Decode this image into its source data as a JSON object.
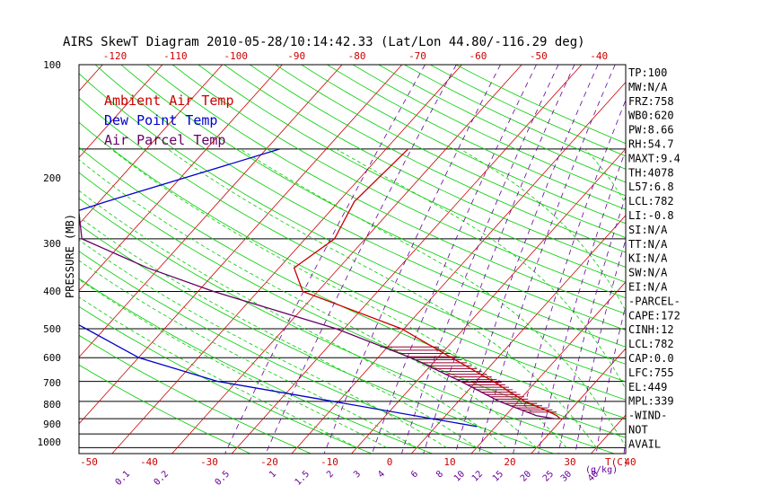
{
  "chart_data": {
    "type": "line",
    "title": "AIRS SkewT Diagram 2010-05-28/10:14:42.33 (Lat/Lon 44.80/-116.29 deg)",
    "ylabel": "PRESSURE (MB)",
    "pressure_ticks": [
      "100",
      "200",
      "300",
      "400",
      "500",
      "600",
      "700",
      "800",
      "900",
      "1000"
    ],
    "top_temp_ticks": [
      "-120",
      "-110",
      "-100",
      "-90",
      "-80",
      "-70",
      "-60",
      "-50",
      "-40"
    ],
    "bottom_temp_ticks": [
      "-50",
      "-40",
      "-30",
      "-20",
      "-10",
      "0",
      "10",
      "20",
      "30",
      "40"
    ],
    "bottom_temp_label": "T(C)",
    "mixing_ratio_ticks": [
      "0.1",
      "0.2",
      "0.5",
      "1",
      "1.5",
      "2",
      "3",
      "4",
      "6",
      "8",
      "10",
      "12",
      "15",
      "20",
      "25",
      "30",
      "40"
    ],
    "mixing_ratio_label": "(g/kg)",
    "legend": [
      {
        "label": "Ambient Air Temp",
        "color": "#cc0000"
      },
      {
        "label": "Dew Point Temp",
        "color": "#0000cc"
      },
      {
        "label": "Air Parcel Temp",
        "color": "#660066"
      }
    ],
    "series": [
      {
        "name": "Ambient Air Temp",
        "color": "#cc0000",
        "points": [
          [
            100,
            -56.3
          ],
          [
            150,
            -57.4
          ],
          [
            200,
            -55.1
          ],
          [
            250,
            -57.5
          ],
          [
            300,
            -52.5
          ],
          [
            400,
            -30.4
          ],
          [
            500,
            -17.7
          ],
          [
            600,
            -7.2
          ],
          [
            700,
            1.1
          ],
          [
            750,
            6.0
          ],
          [
            782,
            8.6
          ],
          [
            800,
            9.6
          ]
        ]
      },
      {
        "name": "Dew Point Temp",
        "color": "#0000cc",
        "points": [
          [
            100,
            -77.7
          ],
          [
            150,
            -98.8
          ],
          [
            200,
            -112.4
          ],
          [
            250,
            -109.7
          ],
          [
            300,
            -100.3
          ],
          [
            400,
            -83.1
          ],
          [
            500,
            -69.9
          ],
          [
            600,
            -53.2
          ],
          [
            700,
            -31.0
          ],
          [
            850,
            -3.1
          ]
        ]
      },
      {
        "name": "Air Parcel Temp",
        "color": "#660066",
        "points": [
          [
            100,
            -118.2
          ],
          [
            150,
            -103.6
          ],
          [
            200,
            -97.3
          ],
          [
            250,
            -82.0
          ],
          [
            300,
            -67.4
          ],
          [
            400,
            -41.3
          ],
          [
            500,
            -24.5
          ],
          [
            600,
            -12.6
          ],
          [
            700,
            -3.2
          ],
          [
            782,
            5.2
          ],
          [
            800,
            8.6
          ]
        ]
      }
    ],
    "stats": [
      "TP:100",
      "MW:N/A",
      "FRZ:758",
      "WB0:620",
      "PW:8.66",
      "RH:54.7",
      "MAXT:9.4",
      "TH:4078",
      "L57:6.8",
      "LCL:782",
      "LI:-0.8",
      "SI:N/A",
      "TT:N/A",
      "KI:N/A",
      "SW:N/A",
      "EI:N/A",
      "-PARCEL-",
      "CAPE:172",
      "CINH:12",
      "LCL:782",
      "CAP:0.0",
      "LFC:755",
      "EL:449",
      "MPL:339",
      "-WIND-",
      "NOT",
      "AVAIL"
    ],
    "colors": {
      "isotherm": "#cc0000",
      "dry_adiabat": "#00cc00",
      "moist_adiabat": "#00cc00",
      "mixing_ratio": "#660099",
      "isobar": "#000000"
    }
  }
}
